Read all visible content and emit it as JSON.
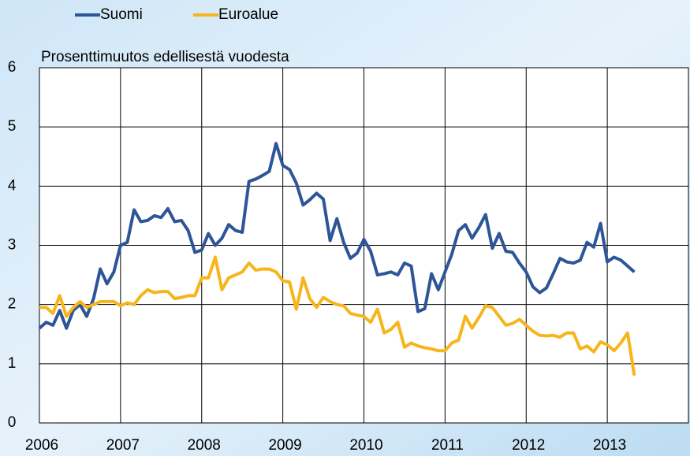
{
  "chart_data": {
    "type": "line",
    "y_label": "Prosenttimuutos edellisestä vuodesta",
    "x": [
      2006.0,
      2006.083,
      2006.167,
      2006.25,
      2006.333,
      2006.417,
      2006.5,
      2006.583,
      2006.667,
      2006.75,
      2006.833,
      2006.917,
      2007.0,
      2007.083,
      2007.167,
      2007.25,
      2007.333,
      2007.417,
      2007.5,
      2007.583,
      2007.667,
      2007.75,
      2007.833,
      2007.917,
      2008.0,
      2008.083,
      2008.167,
      2008.25,
      2008.333,
      2008.417,
      2008.5,
      2008.583,
      2008.667,
      2008.75,
      2008.833,
      2008.917,
      2009.0,
      2009.083,
      2009.167,
      2009.25,
      2009.333,
      2009.417,
      2009.5,
      2009.583,
      2009.667,
      2009.75,
      2009.833,
      2009.917,
      2010.0,
      2010.083,
      2010.167,
      2010.25,
      2010.333,
      2010.417,
      2010.5,
      2010.583,
      2010.667,
      2010.75,
      2010.833,
      2010.917,
      2011.0,
      2011.083,
      2011.167,
      2011.25,
      2011.333,
      2011.417,
      2011.5,
      2011.583,
      2011.667,
      2011.75,
      2011.833,
      2011.917,
      2012.0,
      2012.083,
      2012.167,
      2012.25,
      2012.333,
      2012.417,
      2012.5,
      2012.583,
      2012.667,
      2012.75,
      2012.833,
      2012.917,
      2013.0,
      2013.083,
      2013.167,
      2013.25,
      2013.333
    ],
    "series": [
      {
        "name": "Suomi",
        "color": "#2e5597",
        "values": [
          1.6,
          1.7,
          1.65,
          1.9,
          1.6,
          1.9,
          2.0,
          1.8,
          2.1,
          2.6,
          2.35,
          2.55,
          3.0,
          3.05,
          3.6,
          3.4,
          3.42,
          3.5,
          3.47,
          3.62,
          3.4,
          3.42,
          3.25,
          2.88,
          2.92,
          3.2,
          3.0,
          3.12,
          3.35,
          3.25,
          3.22,
          4.08,
          4.12,
          4.18,
          4.25,
          4.72,
          4.35,
          4.28,
          4.05,
          3.68,
          3.77,
          3.88,
          3.78,
          3.08,
          3.45,
          3.05,
          2.78,
          2.87,
          3.1,
          2.9,
          2.5,
          2.52,
          2.55,
          2.5,
          2.7,
          2.65,
          1.88,
          1.93,
          2.52,
          2.25,
          2.55,
          2.85,
          3.25,
          3.35,
          3.12,
          3.3,
          3.52,
          2.95,
          3.2,
          2.9,
          2.88,
          2.7,
          2.55,
          2.3,
          2.2,
          2.28,
          2.52,
          2.78,
          2.72,
          2.7,
          2.75,
          3.05,
          2.97,
          3.37,
          2.72,
          2.8,
          2.75,
          2.65,
          2.55
        ]
      },
      {
        "name": "Euroalue",
        "color": "#f7b51c",
        "values": [
          1.95,
          1.95,
          1.85,
          2.15,
          1.8,
          1.95,
          2.05,
          1.95,
          2.0,
          2.05,
          2.05,
          2.05,
          1.98,
          2.03,
          2.0,
          2.15,
          2.25,
          2.2,
          2.22,
          2.22,
          2.1,
          2.12,
          2.15,
          2.15,
          2.45,
          2.45,
          2.8,
          2.25,
          2.45,
          2.5,
          2.55,
          2.7,
          2.58,
          2.6,
          2.6,
          2.55,
          2.4,
          2.38,
          1.92,
          2.45,
          2.1,
          1.95,
          2.12,
          2.05,
          2.0,
          1.98,
          1.85,
          1.82,
          1.8,
          1.7,
          1.92,
          1.52,
          1.58,
          1.7,
          1.28,
          1.35,
          1.3,
          1.27,
          1.25,
          1.22,
          1.22,
          1.35,
          1.4,
          1.8,
          1.6,
          1.78,
          1.98,
          1.95,
          1.8,
          1.65,
          1.68,
          1.75,
          1.65,
          1.55,
          1.48,
          1.47,
          1.48,
          1.45,
          1.52,
          1.52,
          1.25,
          1.3,
          1.2,
          1.37,
          1.32,
          1.22,
          1.35,
          1.52,
          0.8
        ]
      }
    ],
    "xlim": [
      2006,
      2014
    ],
    "xticks": [
      2006,
      2007,
      2008,
      2009,
      2010,
      2011,
      2012,
      2013
    ],
    "ylim": [
      0,
      6
    ],
    "yticks": [
      0,
      1,
      2,
      3,
      4,
      5,
      6
    ],
    "grid": true
  }
}
